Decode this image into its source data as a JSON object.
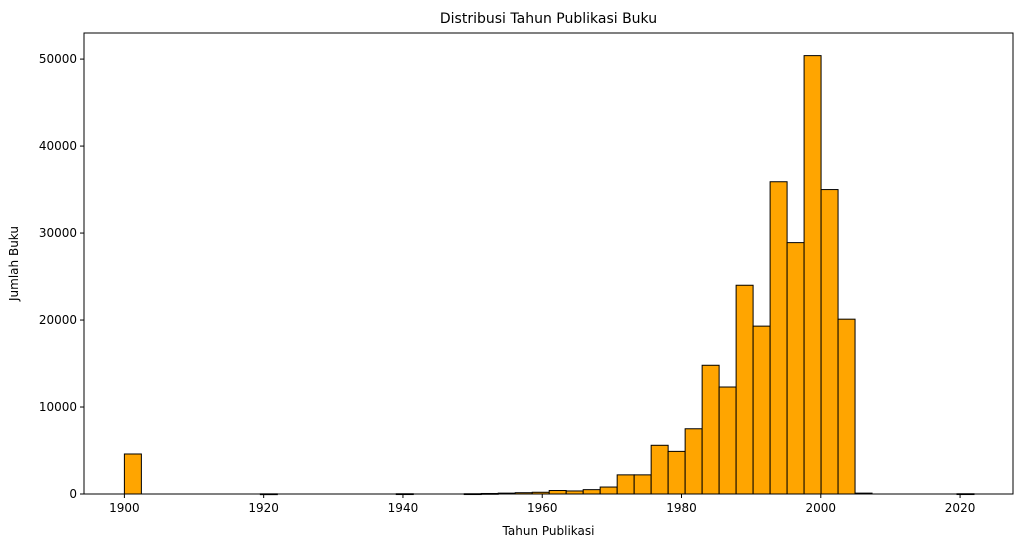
{
  "chart_data": {
    "type": "bar",
    "title": "Distribusi Tahun Publikasi Buku",
    "xlabel": "Tahun Publikasi",
    "ylabel": "Jumlah Buku",
    "xlim": [
      1894.2,
      2027.6
    ],
    "ylim": [
      0,
      53000
    ],
    "x_ticks": [
      1900,
      1920,
      1940,
      1960,
      1980,
      2000,
      2020
    ],
    "y_ticks": [
      0,
      10000,
      20000,
      30000,
      40000,
      50000
    ],
    "bin_width": 2.44,
    "bins_start": [
      1900.0,
      1902.44,
      1904.88,
      1907.32,
      1909.76,
      1912.2,
      1914.64,
      1917.08,
      1919.52,
      1921.96,
      1924.4,
      1926.84,
      1929.28,
      1931.72,
      1934.16,
      1936.6,
      1939.04,
      1941.48,
      1943.92,
      1946.36,
      1948.8,
      1951.24,
      1953.68,
      1956.12,
      1958.56,
      1961.0,
      1963.44,
      1965.88,
      1968.32,
      1970.76,
      1973.2,
      1975.64,
      1978.08,
      1980.52,
      1982.96,
      1985.4,
      1987.84,
      1990.28,
      1992.72,
      1995.16,
      1997.6,
      2000.04,
      2002.48,
      2004.92,
      2007.36,
      2009.8,
      2012.24,
      2014.68,
      2017.12,
      2019.56
    ],
    "values": [
      4600,
      0,
      0,
      0,
      0,
      0,
      0,
      0,
      20,
      0,
      0,
      0,
      0,
      0,
      0,
      0,
      30,
      0,
      0,
      0,
      30,
      60,
      100,
      150,
      200,
      400,
      350,
      500,
      800,
      2200,
      2200,
      5600,
      4900,
      7500,
      14800,
      12300,
      24000,
      19300,
      35900,
      28900,
      50400,
      35000,
      20100,
      100,
      0,
      0,
      0,
      0,
      0,
      30
    ],
    "bar_color": "#FFA500",
    "edge_color": "#000000",
    "grid": false,
    "legend": "none"
  }
}
